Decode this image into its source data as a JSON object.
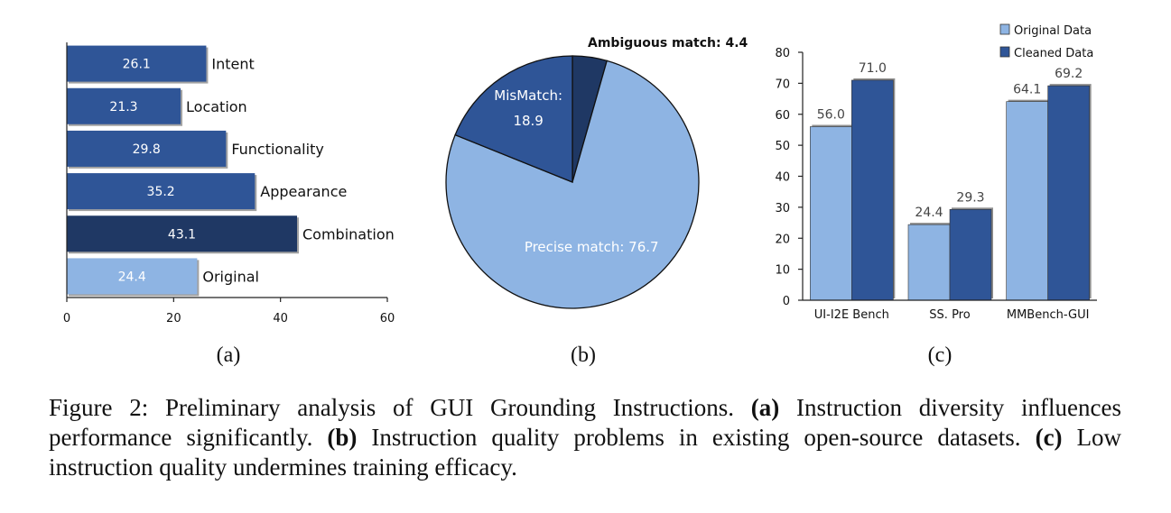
{
  "chart_data": [
    {
      "type": "bar",
      "orientation": "horizontal",
      "categories": [
        "Intent",
        "Location",
        "Functionality",
        "Appearance",
        "Combination",
        "Original"
      ],
      "values": [
        26.1,
        21.3,
        29.8,
        35.2,
        43.1,
        24.4
      ],
      "value_labels": [
        "26.1",
        "21.3",
        "29.8",
        "35.2",
        "43.1",
        "24.4"
      ],
      "bar_colors": [
        "#2f5597",
        "#2f5597",
        "#2f5597",
        "#2f5597",
        "#1f3864",
        "#8eb4e3"
      ],
      "xlim": [
        0,
        60
      ],
      "xticks": [
        "0",
        "20",
        "40",
        "60"
      ],
      "grid": false,
      "sublabel": "(a)"
    },
    {
      "type": "pie",
      "labels": [
        "Ambiguous match",
        "MisMatch",
        "Precise match"
      ],
      "values": [
        4.4,
        18.9,
        76.7
      ],
      "slice_labels": [
        "Ambiguous match: 4.4",
        "MisMatch:",
        "Precise match: 76.7"
      ],
      "mismatch_value_label": "18.9",
      "colors": [
        "#1f3864",
        "#2f5597",
        "#8eb4e3"
      ],
      "sublabel": "(b)"
    },
    {
      "type": "bar",
      "categories": [
        "UI-I2E Bench",
        "SS. Pro",
        "MMBench-GUI"
      ],
      "series": [
        {
          "name": "Original Data",
          "values": [
            56.0,
            24.4,
            64.1
          ],
          "value_labels": [
            "56.0",
            "24.4",
            "64.1"
          ],
          "color": "#8eb4e3"
        },
        {
          "name": "Cleaned Data",
          "values": [
            71.0,
            29.3,
            69.2
          ],
          "value_labels": [
            "71.0",
            "29.3",
            "69.2"
          ],
          "color": "#2f5597"
        }
      ],
      "ylim": [
        0,
        80
      ],
      "yticks": [
        "0",
        "10",
        "20",
        "30",
        "40",
        "50",
        "60",
        "70",
        "80"
      ],
      "grid": false,
      "legend": "top-right",
      "sublabel": "(c)"
    }
  ],
  "caption": {
    "lead": "Figure 2: Preliminary analysis of GUI Grounding Instructions.",
    "a_tag": "(a)",
    "a_text": "Instruction diversity influences performance significantly.",
    "b_tag": "(b)",
    "b_text": "Instruction quality problems in existing open-source datasets.",
    "c_tag": "(c)",
    "c_text": "Low instruction quality undermines training efficacy."
  }
}
